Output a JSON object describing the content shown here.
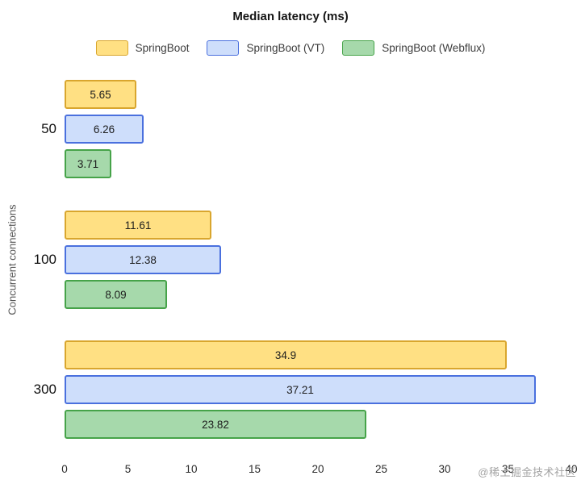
{
  "chart_data": {
    "type": "bar",
    "orientation": "horizontal",
    "title": "Median latency (ms)",
    "xlabel": "",
    "ylabel": "Concurrent connections",
    "categories": [
      "50",
      "100",
      "300"
    ],
    "series": [
      {
        "name": "SpringBoot",
        "values": [
          5.65,
          11.61,
          34.9
        ],
        "fill": "#FFE083",
        "stroke": "#D9A62E"
      },
      {
        "name": "SpringBoot (VT)",
        "values": [
          6.26,
          12.38,
          37.21
        ],
        "fill": "#CEDEFB",
        "stroke": "#4A70DE"
      },
      {
        "name": "SpringBoot (Webflux)",
        "values": [
          3.71,
          8.09,
          23.82
        ],
        "fill": "#A6D9AB",
        "stroke": "#46A349"
      }
    ],
    "xlim": [
      0,
      40
    ],
    "xticks": [
      0,
      5,
      10,
      15,
      20,
      25,
      30,
      35,
      40
    ],
    "grid": false,
    "legend_position": "top"
  },
  "watermark": "@稀土掘金技术社区"
}
